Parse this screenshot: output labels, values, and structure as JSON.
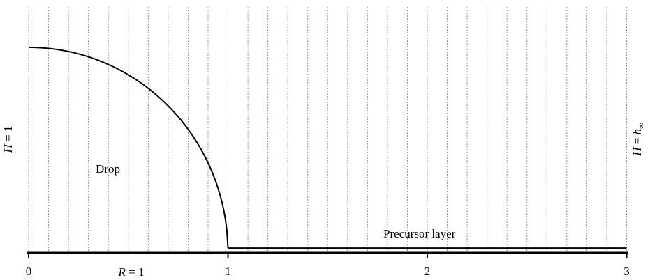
{
  "labels": {
    "drop": "Drop",
    "precursor": "Precursor layer",
    "left_height_var": "H",
    "left_height_rest": " = 1",
    "right_height_var": "H",
    "right_height_eq": " = ",
    "right_height_h": "h",
    "right_height_sub": "∞",
    "radius_var": "R",
    "radius_rest": " = 1"
  },
  "axis": {
    "ticks": [
      "0",
      "1",
      "2",
      "3"
    ]
  },
  "model": {
    "drop_radius": 1,
    "drop_height": 1,
    "precursor_thickness": 0.02,
    "domain_end": 3,
    "grid_spacing": 0.1
  }
}
